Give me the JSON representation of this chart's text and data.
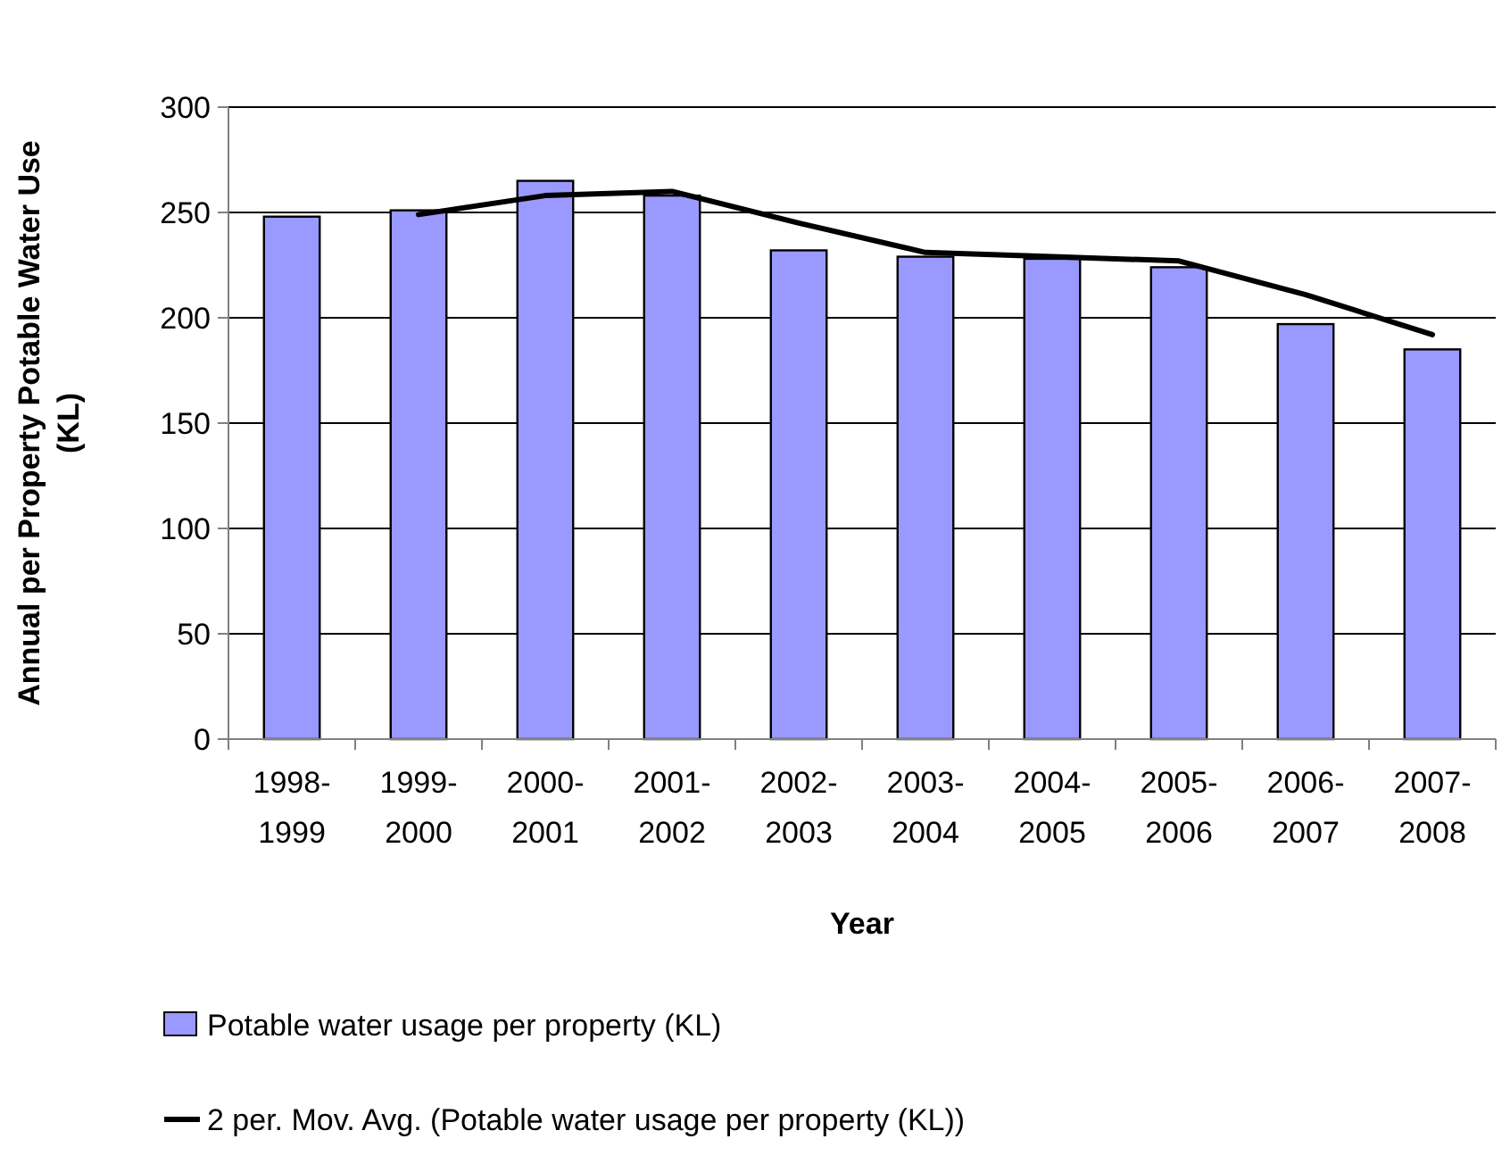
{
  "chart_data": {
    "type": "bar",
    "xlabel": "Year",
    "ylabel": "Annual per Property Potable Water Use (KL)",
    "categories": [
      "1998-1999",
      "1999-2000",
      "2000-2001",
      "2001-2002",
      "2002-2003",
      "2003-2004",
      "2004-2005",
      "2005-2006",
      "2006-2007",
      "2007-2008"
    ],
    "series": [
      {
        "name": "Potable water usage per property (KL)",
        "color": "#9999ff",
        "values": [
          248,
          251,
          265,
          258,
          232,
          229,
          228,
          224,
          197,
          185
        ]
      },
      {
        "name": "2 per. Mov. Avg. (Potable water usage per property (KL))",
        "type": "line",
        "color": "#000000",
        "values": [
          null,
          249,
          258,
          260,
          245,
          231,
          229,
          227,
          211,
          192
        ]
      }
    ],
    "ylim": [
      0,
      300
    ],
    "yticks": [
      0,
      50,
      100,
      150,
      200,
      250,
      300
    ],
    "grid": "y",
    "legend": "bottom"
  }
}
